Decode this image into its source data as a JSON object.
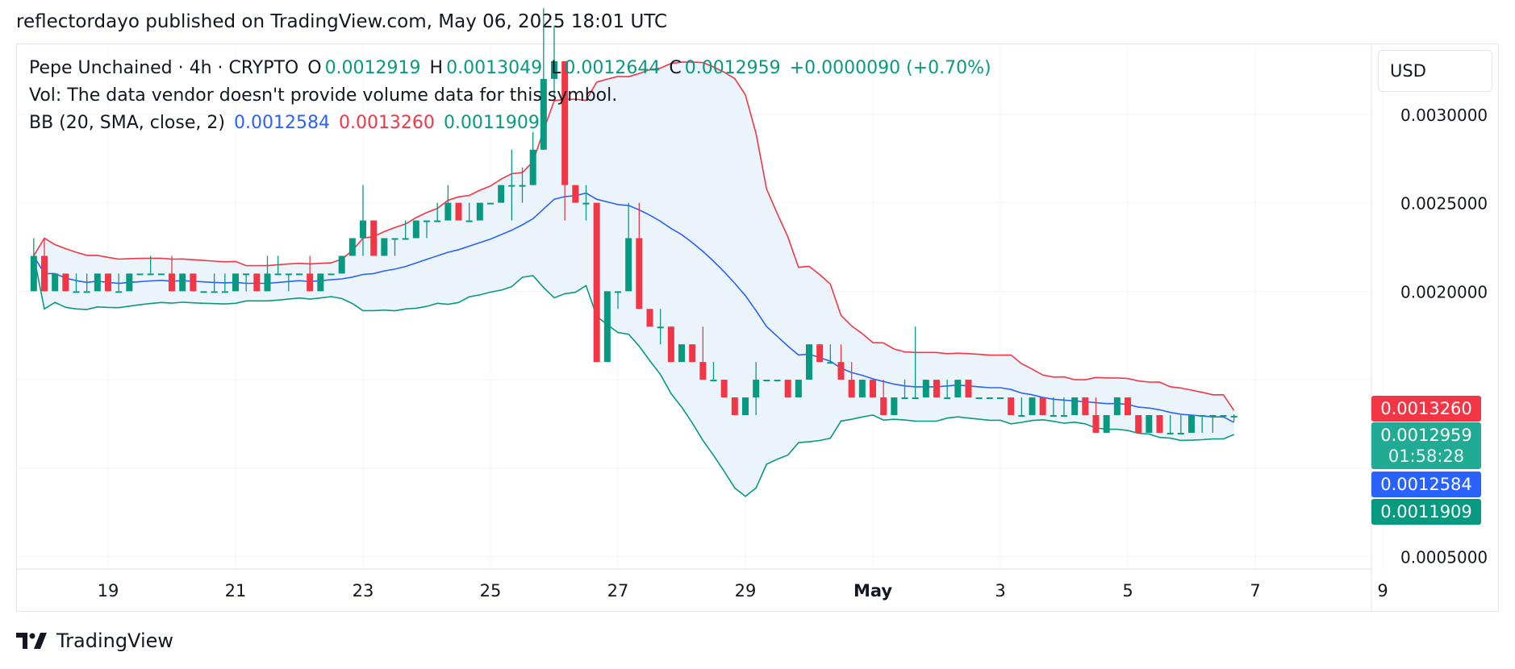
{
  "header": {
    "text": "reflectordayo published on TradingView.com, May 06, 2025 18:01 UTC"
  },
  "legend": {
    "symbol_line": "Pepe Unchained · 4h · CRYPTO",
    "o_label": "O",
    "o_value": "0.0012919",
    "h_label": "H",
    "h_value": "0.0013049",
    "l_label": "L",
    "l_value": "0.0012644",
    "c_label": "C",
    "c_value": "0.0012959",
    "change": "+0.0000090 (+0.70%)",
    "vol": "Vol: The data vendor doesn't provide volume data for this symbol.",
    "bb_label": "BB (20, SMA, close, 2)",
    "bb_basis": "0.0012584",
    "bb_upper": "0.0013260",
    "bb_lower": "0.0011909"
  },
  "price_axis": {
    "currency": "USD",
    "ticks": [
      "0.0030000",
      "0.0025000",
      "0.0020000",
      "0.0005000"
    ],
    "tags": {
      "upper": "0.0013260",
      "last": "0.0012959",
      "countdown": "01:58:28",
      "basis": "0.0012584",
      "lower": "0.0011909"
    }
  },
  "time_axis": {
    "labels": [
      "19",
      "21",
      "23",
      "25",
      "27",
      "29",
      "May",
      "3",
      "5",
      "7",
      "9"
    ]
  },
  "footer": {
    "brand": "TradingView"
  },
  "colors": {
    "up": "#089981",
    "down": "#f23645",
    "basis": "#2962ff",
    "upper_band": "#f23645",
    "lower_band": "#089981",
    "band_fill": "#ecf4fb",
    "grid": "#f0f3fa"
  },
  "chart_data": {
    "type": "candlestick",
    "title": "Pepe Unchained · 4h · CRYPTO",
    "ylabel": "USD",
    "ylim": [
      0.00043,
      0.0034
    ],
    "x_ticks": [
      "19",
      "21",
      "23",
      "25",
      "27",
      "29",
      "May",
      "3",
      "5",
      "7",
      "9"
    ],
    "candles": [
      [
        "Apr 17 20:00",
        0.002,
        0.0023,
        0.002,
        0.0022
      ],
      [
        "Apr 18 00:00",
        0.0022,
        0.0023,
        0.002,
        0.002
      ],
      [
        "Apr 18 04:00",
        0.002,
        0.0021,
        0.002,
        0.0021
      ],
      [
        "Apr 18 08:00",
        0.0021,
        0.0021,
        0.002,
        0.002
      ],
      [
        "Apr 18 12:00",
        0.002,
        0.0021,
        0.002,
        0.002
      ],
      [
        "Apr 18 16:00",
        0.002,
        0.0021,
        0.002,
        0.002
      ],
      [
        "Apr 18 20:00",
        0.002,
        0.0021,
        0.002,
        0.0021
      ],
      [
        "Apr 19 00:00",
        0.0021,
        0.0021,
        0.002,
        0.002
      ],
      [
        "Apr 19 04:00",
        0.002,
        0.0021,
        0.002,
        0.002
      ],
      [
        "Apr 19 08:00",
        0.002,
        0.0021,
        0.002,
        0.0021
      ],
      [
        "Apr 19 12:00",
        0.0021,
        0.0021,
        0.0021,
        0.0021
      ],
      [
        "Apr 19 16:00",
        0.0021,
        0.0022,
        0.0021,
        0.0021
      ],
      [
        "Apr 19 20:00",
        0.0021,
        0.0021,
        0.0021,
        0.0021
      ],
      [
        "Apr 20 00:00",
        0.0021,
        0.0022,
        0.002,
        0.002
      ],
      [
        "Apr 20 04:00",
        0.002,
        0.0021,
        0.002,
        0.0021
      ],
      [
        "Apr 20 08:00",
        0.0021,
        0.0021,
        0.002,
        0.002
      ],
      [
        "Apr 20 12:00",
        0.002,
        0.002,
        0.002,
        0.002
      ],
      [
        "Apr 20 16:00",
        0.002,
        0.0021,
        0.002,
        0.002
      ],
      [
        "Apr 20 20:00",
        0.002,
        0.0021,
        0.002,
        0.002
      ],
      [
        "Apr 21 00:00",
        0.002,
        0.0021,
        0.002,
        0.0021
      ],
      [
        "Apr 21 04:00",
        0.0021,
        0.0021,
        0.002,
        0.0021
      ],
      [
        "Apr 21 08:00",
        0.0021,
        0.0021,
        0.002,
        0.002
      ],
      [
        "Apr 21 12:00",
        0.002,
        0.0022,
        0.002,
        0.0021
      ],
      [
        "Apr 21 16:00",
        0.0021,
        0.0022,
        0.0021,
        0.0021
      ],
      [
        "Apr 21 20:00",
        0.0021,
        0.0021,
        0.002,
        0.0021
      ],
      [
        "Apr 22 00:00",
        0.0021,
        0.0021,
        0.0021,
        0.0021
      ],
      [
        "Apr 22 04:00",
        0.0021,
        0.0022,
        0.002,
        0.002
      ],
      [
        "Apr 22 08:00",
        0.002,
        0.0021,
        0.002,
        0.0021
      ],
      [
        "Apr 22 12:00",
        0.0021,
        0.0021,
        0.0021,
        0.0021
      ],
      [
        "Apr 22 16:00",
        0.0021,
        0.0022,
        0.0021,
        0.0022
      ],
      [
        "Apr 22 20:00",
        0.0022,
        0.0023,
        0.0022,
        0.0023
      ],
      [
        "Apr 23 00:00",
        0.0023,
        0.0026,
        0.0022,
        0.0024
      ],
      [
        "Apr 23 04:00",
        0.0024,
        0.0024,
        0.0022,
        0.0022
      ],
      [
        "Apr 23 08:00",
        0.0022,
        0.0023,
        0.0022,
        0.0023
      ],
      [
        "Apr 23 12:00",
        0.0023,
        0.0023,
        0.0022,
        0.0023
      ],
      [
        "Apr 23 16:00",
        0.0023,
        0.0024,
        0.0023,
        0.0023
      ],
      [
        "Apr 23 20:00",
        0.0023,
        0.0024,
        0.0023,
        0.0024
      ],
      [
        "Apr 24 00:00",
        0.0024,
        0.0024,
        0.0023,
        0.0024
      ],
      [
        "Apr 24 04:00",
        0.0024,
        0.0025,
        0.0024,
        0.0024
      ],
      [
        "Apr 24 08:00",
        0.0024,
        0.0026,
        0.0024,
        0.0025
      ],
      [
        "Apr 24 12:00",
        0.0025,
        0.0025,
        0.0024,
        0.0024
      ],
      [
        "Apr 24 16:00",
        0.0024,
        0.0025,
        0.0024,
        0.0024
      ],
      [
        "Apr 24 20:00",
        0.0024,
        0.0025,
        0.0024,
        0.0025
      ],
      [
        "Apr 25 00:00",
        0.0025,
        0.0025,
        0.0025,
        0.0025
      ],
      [
        "Apr 25 04:00",
        0.0025,
        0.0026,
        0.0025,
        0.0026
      ],
      [
        "Apr 25 08:00",
        0.0026,
        0.0028,
        0.0024,
        0.0026
      ],
      [
        "Apr 25 12:00",
        0.0026,
        0.0027,
        0.0025,
        0.0026
      ],
      [
        "Apr 25 16:00",
        0.0026,
        0.0029,
        0.0026,
        0.0028
      ],
      [
        "Apr 25 20:00",
        0.0028,
        0.0036,
        0.0028,
        0.0032
      ],
      [
        "Apr 26 00:00",
        0.0032,
        0.0035,
        0.0031,
        0.0033
      ],
      [
        "Apr 26 04:00",
        0.0033,
        0.0033,
        0.0024,
        0.0026
      ],
      [
        "Apr 26 08:00",
        0.0026,
        0.0026,
        0.0025,
        0.0025
      ],
      [
        "Apr 26 12:00",
        0.0025,
        0.0026,
        0.0024,
        0.0025
      ],
      [
        "Apr 26 16:00",
        0.0025,
        0.0025,
        0.0016,
        0.0016
      ],
      [
        "Apr 26 20:00",
        0.0016,
        0.002,
        0.0016,
        0.002
      ],
      [
        "Apr 27 00:00",
        0.002,
        0.002,
        0.0019,
        0.002
      ],
      [
        "Apr 27 04:00",
        0.002,
        0.0025,
        0.002,
        0.0023
      ],
      [
        "Apr 27 08:00",
        0.0023,
        0.0025,
        0.0019,
        0.0019
      ],
      [
        "Apr 27 12:00",
        0.0019,
        0.0019,
        0.0018,
        0.0018
      ],
      [
        "Apr 27 16:00",
        0.0018,
        0.0019,
        0.0017,
        0.0018
      ],
      [
        "Apr 27 20:00",
        0.0018,
        0.0018,
        0.0016,
        0.0016
      ],
      [
        "Apr 28 00:00",
        0.0016,
        0.0017,
        0.0016,
        0.0017
      ],
      [
        "Apr 28 04:00",
        0.0017,
        0.0017,
        0.0016,
        0.0016
      ],
      [
        "Apr 28 08:00",
        0.0016,
        0.0018,
        0.0015,
        0.0015
      ],
      [
        "Apr 28 12:00",
        0.0015,
        0.0016,
        0.0015,
        0.0015
      ],
      [
        "Apr 28 16:00",
        0.0015,
        0.0015,
        0.0014,
        0.0014
      ],
      [
        "Apr 28 20:00",
        0.0014,
        0.0014,
        0.0013,
        0.0013
      ],
      [
        "Apr 29 00:00",
        0.0013,
        0.0014,
        0.0013,
        0.0014
      ],
      [
        "Apr 29 04:00",
        0.0014,
        0.0016,
        0.0013,
        0.0015
      ],
      [
        "Apr 29 08:00",
        0.0015,
        0.0015,
        0.0015,
        0.0015
      ],
      [
        "Apr 29 12:00",
        0.0015,
        0.0015,
        0.0015,
        0.0015
      ],
      [
        "Apr 29 16:00",
        0.0015,
        0.0015,
        0.0014,
        0.0014
      ],
      [
        "Apr 29 20:00",
        0.0014,
        0.0015,
        0.0014,
        0.0015
      ],
      [
        "Apr 30 00:00",
        0.0015,
        0.0017,
        0.0015,
        0.0017
      ],
      [
        "Apr 30 04:00",
        0.0017,
        0.0017,
        0.0016,
        0.0016
      ],
      [
        "Apr 30 08:00",
        0.0016,
        0.0017,
        0.0016,
        0.0016
      ],
      [
        "Apr 30 12:00",
        0.0016,
        0.0017,
        0.0015,
        0.0015
      ],
      [
        "Apr 30 16:00",
        0.0015,
        0.0016,
        0.0014,
        0.0014
      ],
      [
        "Apr 30 20:00",
        0.0014,
        0.0015,
        0.0014,
        0.0015
      ],
      [
        "May 01 00:00",
        0.0015,
        0.0015,
        0.0014,
        0.0014
      ],
      [
        "May 01 04:00",
        0.0014,
        0.0015,
        0.0013,
        0.0013
      ],
      [
        "May 01 08:00",
        0.0013,
        0.0014,
        0.0013,
        0.0014
      ],
      [
        "May 01 12:00",
        0.0014,
        0.0015,
        0.0014,
        0.0014
      ],
      [
        "May 01 16:00",
        0.0014,
        0.0018,
        0.0014,
        0.0014
      ],
      [
        "May 01 20:00",
        0.0014,
        0.0015,
        0.0014,
        0.0015
      ],
      [
        "May 02 00:00",
        0.0015,
        0.0015,
        0.0014,
        0.0014
      ],
      [
        "May 02 04:00",
        0.0014,
        0.0015,
        0.0014,
        0.0014
      ],
      [
        "May 02 08:00",
        0.0014,
        0.0015,
        0.0014,
        0.0015
      ],
      [
        "May 02 12:00",
        0.0015,
        0.0015,
        0.0014,
        0.0014
      ],
      [
        "May 02 16:00",
        0.0014,
        0.0014,
        0.0014,
        0.0014
      ],
      [
        "May 02 20:00",
        0.0014,
        0.0014,
        0.0014,
        0.0014
      ],
      [
        "May 03 00:00",
        0.0014,
        0.0014,
        0.0014,
        0.0014
      ],
      [
        "May 03 04:00",
        0.0014,
        0.0014,
        0.0013,
        0.0013
      ],
      [
        "May 03 08:00",
        0.0013,
        0.0014,
        0.0013,
        0.0013
      ],
      [
        "May 03 12:00",
        0.0013,
        0.0014,
        0.0013,
        0.0014
      ],
      [
        "May 03 16:00",
        0.0014,
        0.0014,
        0.0013,
        0.0013
      ],
      [
        "May 03 20:00",
        0.0013,
        0.0014,
        0.0013,
        0.0013
      ],
      [
        "May 04 00:00",
        0.0013,
        0.0014,
        0.0013,
        0.0013
      ],
      [
        "May 04 04:00",
        0.0013,
        0.0014,
        0.0013,
        0.0014
      ],
      [
        "May 04 08:00",
        0.0014,
        0.0014,
        0.0013,
        0.0013
      ],
      [
        "May 04 12:00",
        0.0013,
        0.0014,
        0.0012,
        0.0012
      ],
      [
        "May 04 16:00",
        0.0012,
        0.0013,
        0.0012,
        0.0013
      ],
      [
        "May 04 20:00",
        0.0013,
        0.0014,
        0.0013,
        0.0014
      ],
      [
        "May 05 00:00",
        0.0014,
        0.0014,
        0.0013,
        0.0013
      ],
      [
        "May 05 04:00",
        0.0013,
        0.0013,
        0.0012,
        0.0012
      ],
      [
        "May 05 08:00",
        0.0012,
        0.0013,
        0.0012,
        0.0013
      ],
      [
        "May 05 12:00",
        0.0013,
        0.0013,
        0.0012,
        0.0012
      ],
      [
        "May 05 16:00",
        0.0012,
        0.0013,
        0.0012,
        0.0012
      ],
      [
        "May 05 20:00",
        0.0012,
        0.0013,
        0.0012,
        0.0012
      ],
      [
        "May 06 00:00",
        0.0012,
        0.0013,
        0.0012,
        0.0013
      ],
      [
        "May 06 04:00",
        0.0013,
        0.0013,
        0.0012,
        0.0013
      ],
      [
        "May 06 08:00",
        0.0013,
        0.0013,
        0.0012,
        0.0013
      ],
      [
        "May 06 12:00",
        0.0013,
        0.0013,
        0.0013,
        0.0013
      ],
      [
        "May 06 16:00",
        0.0012919,
        0.0013049,
        0.0012644,
        0.0012959
      ]
    ],
    "bollinger": {
      "params": "20, SMA, close, 2",
      "basis_last": 0.0012584,
      "upper_last": 0.001326,
      "lower_last": 0.0011909
    }
  }
}
